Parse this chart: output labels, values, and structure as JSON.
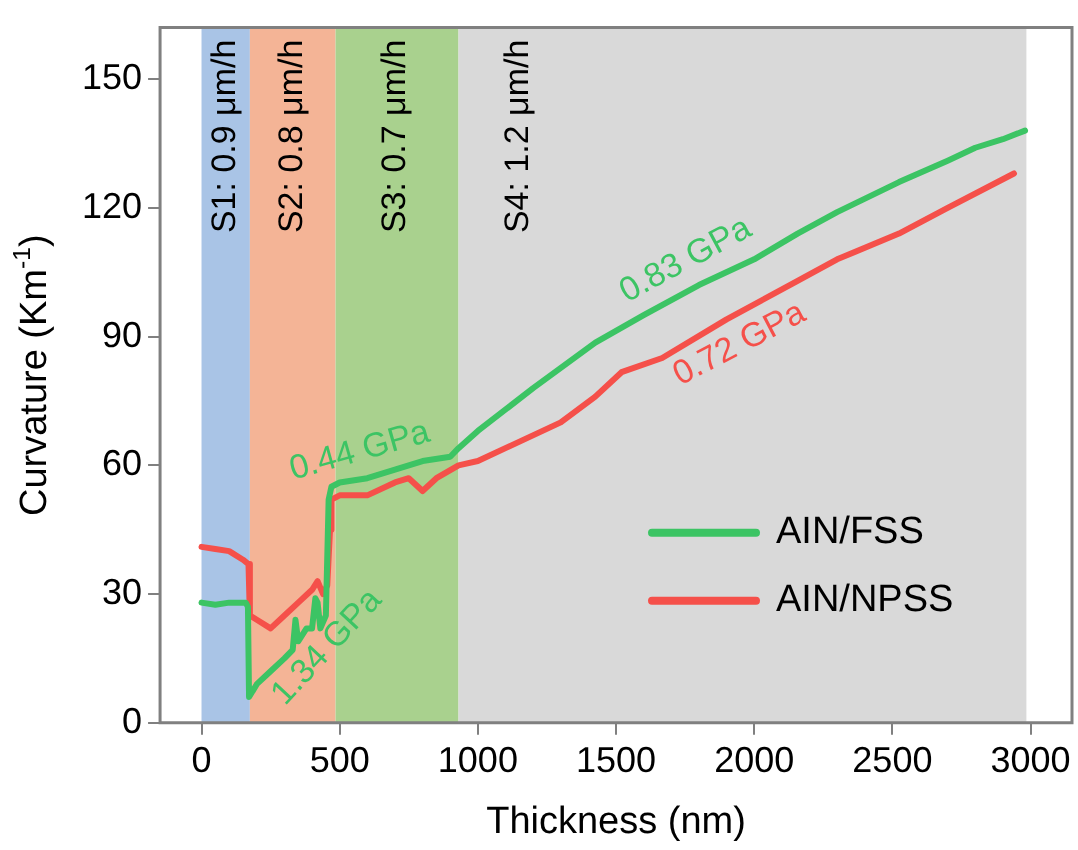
{
  "chart_data": {
    "type": "line",
    "xlabel": "Thickness (nm)",
    "ylabel": "Curvature (Km$^{-1}$)",
    "xlim": [
      -150,
      3150
    ],
    "ylim": [
      0,
      162
    ],
    "xticks": [
      0,
      500,
      1000,
      1500,
      2000,
      2500,
      3000
    ],
    "yticks": [
      0,
      30,
      60,
      90,
      120,
      150
    ],
    "grid": false,
    "legend": "bottom right",
    "marker": "none",
    "line_style": "solid",
    "bands": [
      {
        "axis": "x",
        "from": 0,
        "to": 175,
        "label": "S1: 0.9 μm/h",
        "color": "#a9c4e6"
      },
      {
        "axis": "x",
        "from": 175,
        "to": 485,
        "label": "S2: 0.8 μm/h",
        "color": "#f4b496"
      },
      {
        "axis": "x",
        "from": 485,
        "to": 930,
        "label": "S3: 0.7 μm/h",
        "color": "#a9d18e"
      },
      {
        "axis": "x",
        "from": 930,
        "to": 2985,
        "label": "S4: 1.2 μm/h",
        "color": "#d9d9d9"
      }
    ],
    "annotations": [
      {
        "text": "1.34 GPa",
        "x": 380,
        "y": 22
      },
      {
        "text": "0.44 GPa",
        "x": 600,
        "y": 57
      },
      {
        "text": "0.83 GPa",
        "x": 1800,
        "y": 102
      },
      {
        "text": "0.72 GPa",
        "x": 1900,
        "y": 94
      }
    ],
    "series": [
      {
        "name": "AIN/FSS",
        "color": "#3cc464",
        "x": [
          0,
          50,
          100,
          160,
          168,
          172,
          200,
          250,
          300,
          330,
          340,
          350,
          380,
          400,
          412,
          420,
          430,
          450,
          460,
          470,
          500,
          600,
          700,
          800,
          900,
          930,
          1000,
          1200,
          1425,
          1600,
          1800,
          2000,
          2157,
          2300,
          2524,
          2700,
          2800,
          2900,
          2980
        ],
        "values": [
          28,
          27.5,
          28,
          28,
          27,
          6,
          9,
          12,
          15,
          17,
          24,
          19,
          22,
          22,
          29,
          28,
          22,
          25,
          52,
          55,
          56,
          57,
          59,
          61,
          62,
          64,
          68,
          78,
          88.6,
          95,
          102,
          108,
          114,
          119,
          126,
          131,
          134,
          136,
          138
        ]
      },
      {
        "name": "AIN/NPSS",
        "color": "#f5504a",
        "x": [
          0,
          50,
          100,
          150,
          170,
          175,
          200,
          250,
          300,
          350,
          400,
          420,
          440,
          455,
          465,
          470,
          500,
          600,
          700,
          750,
          800,
          850,
          930,
          1000,
          1300,
          1425,
          1520,
          1667,
          1900,
          2157,
          2300,
          2524,
          2700,
          2940
        ],
        "values": [
          41,
          40.5,
          40,
          38,
          37,
          25,
          24,
          22,
          25,
          28,
          31,
          33,
          30,
          32,
          45,
          52,
          53,
          53,
          56,
          57,
          54,
          57,
          60,
          61,
          70,
          76,
          81.7,
          85,
          94,
          103,
          108,
          114,
          120,
          128
        ]
      }
    ]
  }
}
